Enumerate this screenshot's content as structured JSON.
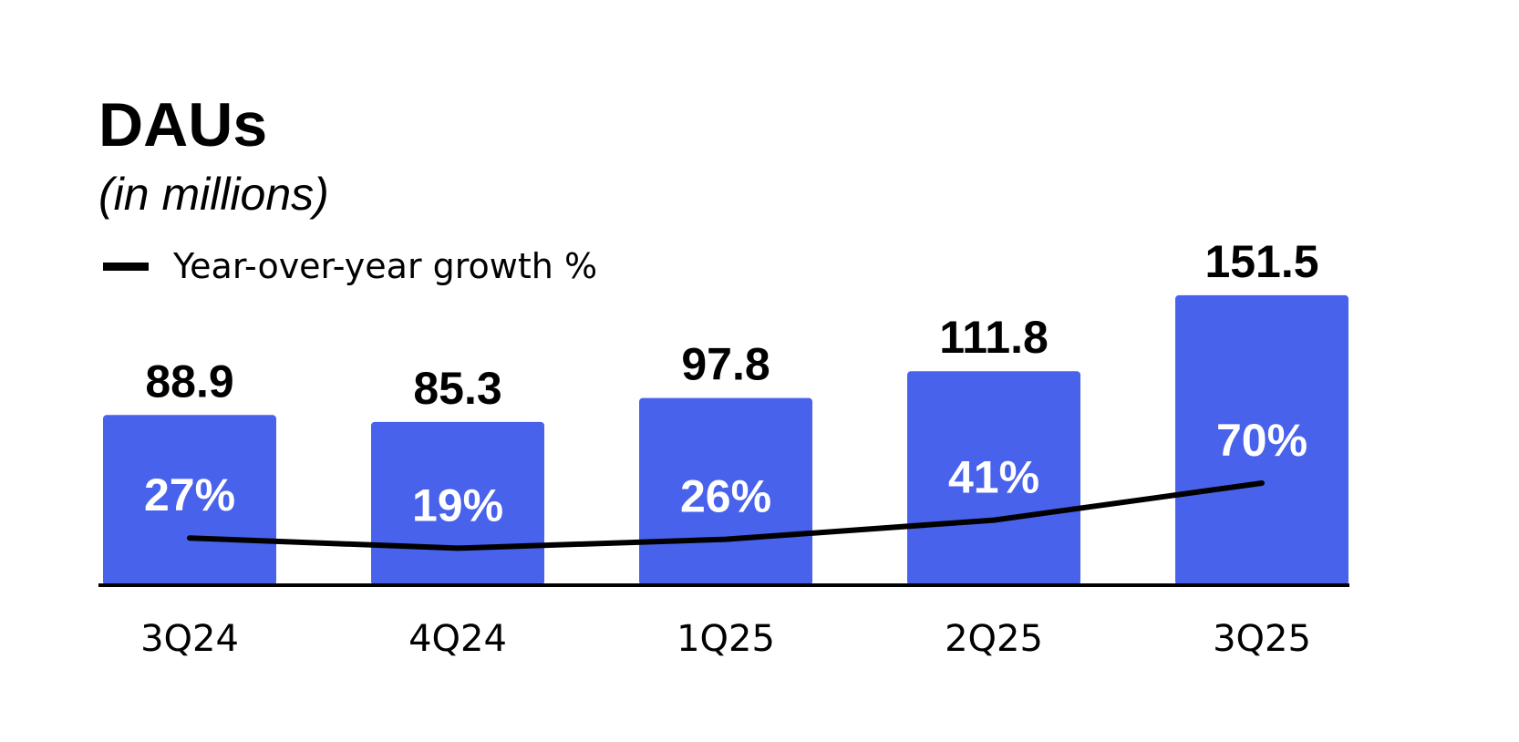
{
  "chart_data": {
    "type": "bar",
    "title": "DAUs",
    "subtitle": "(in millions)",
    "categories": [
      "3Q24",
      "4Q24",
      "1Q25",
      "2Q25",
      "3Q25"
    ],
    "series": [
      {
        "name": "DAUs",
        "unit": "millions",
        "values": [
          88.9,
          85.3,
          97.8,
          111.8,
          151.5
        ],
        "labels": [
          "88.9",
          "85.3",
          "97.8",
          "111.8",
          "151.5"
        ]
      },
      {
        "name": "Year-over-year growth %",
        "type": "line",
        "values": [
          27,
          19,
          26,
          41,
          70
        ],
        "labels": [
          "27%",
          "19%",
          "26%",
          "41%",
          "70%"
        ]
      }
    ],
    "legend": {
      "label": "Year-over-year growth %",
      "position": "top-left"
    },
    "xlabel": "",
    "ylabel": "",
    "ylim": [
      0,
      170
    ],
    "colors": {
      "bar": "#4862EC",
      "line": "#000000",
      "growth_text": "#FFFFFF",
      "axis": "#000000"
    }
  }
}
